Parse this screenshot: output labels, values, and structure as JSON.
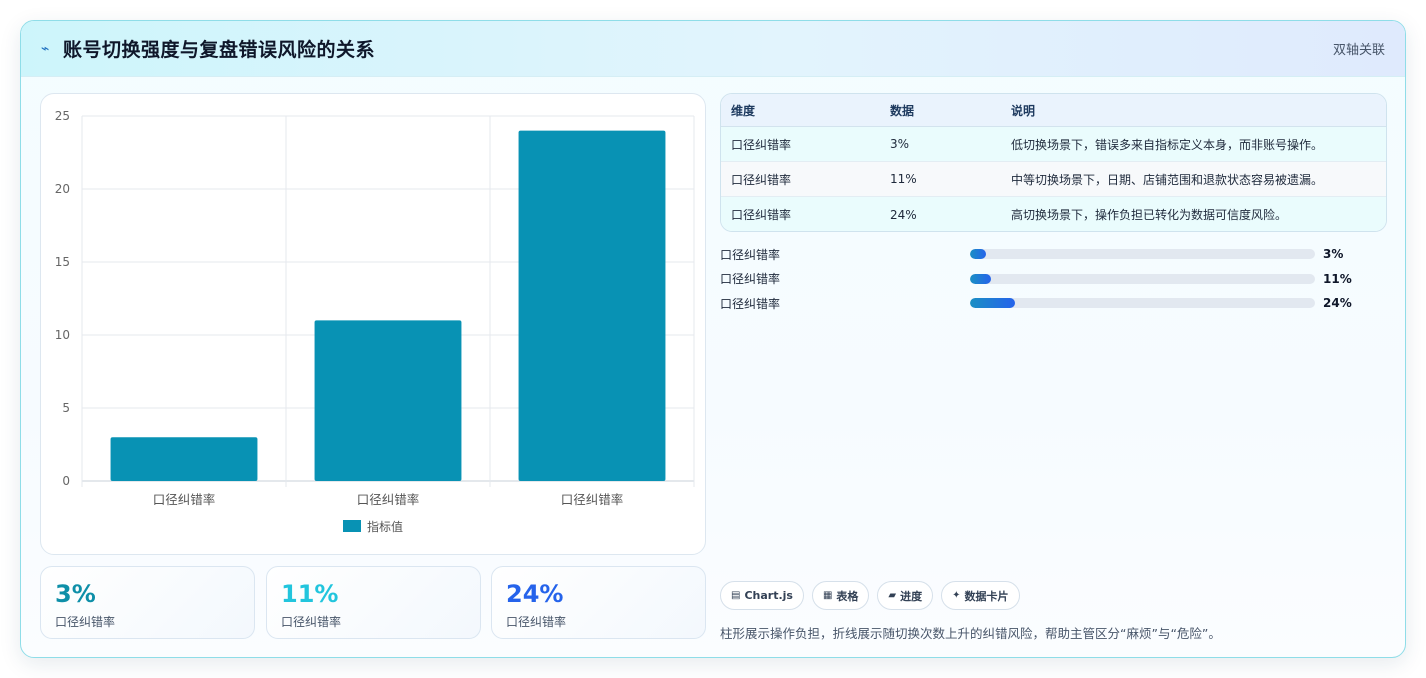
{
  "header": {
    "icon": "lightning-icon",
    "title": "账号切换强度与复盘错误风险的关系",
    "tag": "双轴关联"
  },
  "chart_data": {
    "type": "bar",
    "categories": [
      "口径纠错率",
      "口径纠错率",
      "口径纠错率"
    ],
    "series": [
      {
        "name": "指标值",
        "values": [
          3,
          11,
          24
        ],
        "color": "#0892b4"
      }
    ],
    "ylim": [
      0,
      25
    ],
    "yticks": [
      0,
      5,
      10,
      15,
      20,
      25
    ],
    "grid": true,
    "legend": "bottom"
  },
  "stats": [
    {
      "value": "3%",
      "label": "口径纠错率",
      "color": "#0e8fa8"
    },
    {
      "value": "11%",
      "label": "口径纠错率",
      "color": "#22c5dd"
    },
    {
      "value": "24%",
      "label": "口径纠错率",
      "color": "#2563eb"
    }
  ],
  "table": {
    "headers": [
      "维度",
      "数据",
      "说明"
    ],
    "rows": [
      [
        "口径纠错率",
        "3%",
        "低切换场景下，错误多来自指标定义本身，而非账号操作。"
      ],
      [
        "口径纠错率",
        "11%",
        "中等切换场景下，日期、店铺范围和退款状态容易被遗漏。"
      ],
      [
        "口径纠错率",
        "24%",
        "高切换场景下，操作负担已转化为数据可信度风险。"
      ]
    ]
  },
  "progress": [
    {
      "label": "口径纠错率",
      "value": "3%",
      "fraction": 0.045
    },
    {
      "label": "口径纠错率",
      "value": "11%",
      "fraction": 0.06
    },
    {
      "label": "口径纠错率",
      "value": "24%",
      "fraction": 0.13
    }
  ],
  "pills": [
    {
      "icon": "chart-icon",
      "glyph": "▤",
      "label": "Chart.js"
    },
    {
      "icon": "table-icon",
      "glyph": "▦",
      "label": "表格"
    },
    {
      "icon": "progress-icon",
      "glyph": "▰",
      "label": "进度"
    },
    {
      "icon": "sparkle-icon",
      "glyph": "✦",
      "label": "数据卡片"
    }
  ],
  "footnote": "柱形展示操作负担，折线展示随切换次数上升的纠错风险，帮助主管区分“麻烦”与“危险”。"
}
